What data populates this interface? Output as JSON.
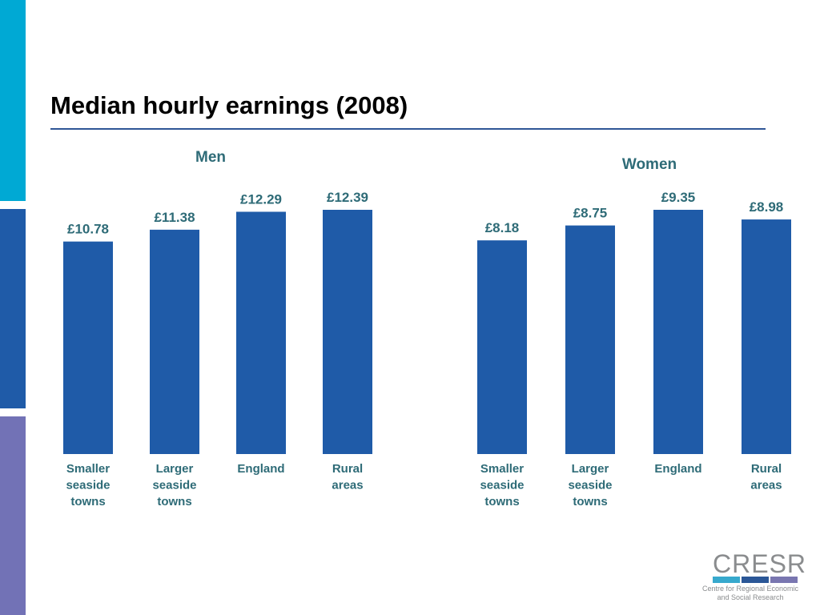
{
  "slide": {
    "title": "Median hourly earnings (2008)"
  },
  "colors": {
    "bar": "#1f5ba8",
    "label": "#2e6b77",
    "title_rule": "#2f5696",
    "strip_cyan": "#00a9d4",
    "strip_blue": "#1f5ba8",
    "strip_purple": "#7272b6",
    "logo_text": "#8a8c8e",
    "logo_bar_1": "#37a9cd",
    "logo_bar_2": "#2b5797",
    "logo_bar_3": "#7976b0"
  },
  "chart_data": [
    {
      "type": "bar",
      "title": "Men",
      "categories": [
        "Smaller seaside towns",
        "Larger seaside towns",
        "England",
        "Rural areas"
      ],
      "values": [
        10.78,
        11.38,
        12.29,
        12.39
      ],
      "value_labels": [
        "£10.78",
        "£11.38",
        "£12.29",
        "£12.39"
      ],
      "xlabel": "",
      "ylabel": "",
      "ylim": [
        0,
        12.39
      ],
      "grid": false
    },
    {
      "type": "bar",
      "title": "Women",
      "categories": [
        "Smaller seaside towns",
        "Larger seaside towns",
        "England",
        "Rural areas"
      ],
      "values": [
        8.18,
        8.75,
        9.35,
        8.98
      ],
      "value_labels": [
        "£8.18",
        "£8.75",
        "£9.35",
        "£8.98"
      ],
      "xlabel": "",
      "ylabel": "",
      "ylim": [
        0,
        9.35
      ],
      "grid": false
    }
  ],
  "logo": {
    "name": "CRESR",
    "tagline": "Centre for Regional Economic and Social Research"
  }
}
